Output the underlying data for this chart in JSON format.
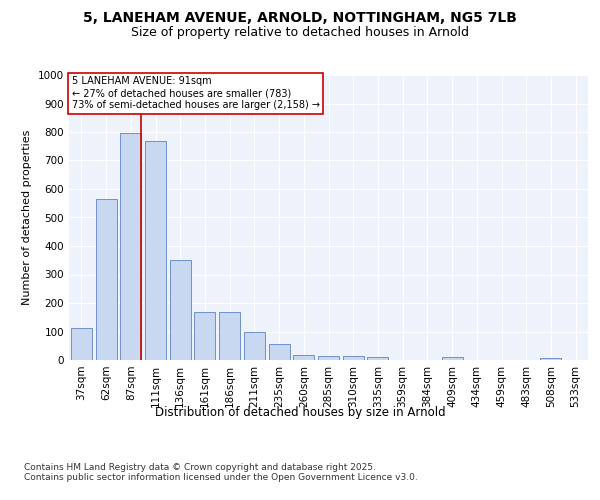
{
  "title_line1": "5, LANEHAM AVENUE, ARNOLD, NOTTINGHAM, NG5 7LB",
  "title_line2": "Size of property relative to detached houses in Arnold",
  "xlabel": "Distribution of detached houses by size in Arnold",
  "ylabel": "Number of detached properties",
  "footer": "Contains HM Land Registry data © Crown copyright and database right 2025.\nContains public sector information licensed under the Open Government Licence v3.0.",
  "annotation_text": "5 LANEHAM AVENUE: 91sqm\n← 27% of detached houses are smaller (783)\n73% of semi-detached houses are larger (2,158) →",
  "categories": [
    "37sqm",
    "62sqm",
    "87sqm",
    "111sqm",
    "136sqm",
    "161sqm",
    "186sqm",
    "211sqm",
    "235sqm",
    "260sqm",
    "285sqm",
    "310sqm",
    "335sqm",
    "359sqm",
    "384sqm",
    "409sqm",
    "434sqm",
    "459sqm",
    "483sqm",
    "508sqm",
    "533sqm"
  ],
  "values": [
    112,
    565,
    795,
    770,
    350,
    168,
    168,
    98,
    55,
    18,
    13,
    13,
    10,
    0,
    0,
    10,
    0,
    0,
    0,
    8,
    0
  ],
  "bar_color": "#c8d8f0",
  "bar_edge_color": "#7090c8",
  "red_line_color": "#cc0000",
  "red_line_x": 2.425,
  "annotation_box_edge_color": "#cc0000",
  "page_bg_color": "#ffffff",
  "plot_bg_color": "#eef2fa",
  "ylim": [
    0,
    1000
  ],
  "yticks": [
    0,
    100,
    200,
    300,
    400,
    500,
    600,
    700,
    800,
    900,
    1000
  ],
  "grid_color": "#ffffff",
  "title_fontsize": 10,
  "subtitle_fontsize": 9,
  "axis_label_fontsize": 8.5,
  "ylabel_fontsize": 8,
  "tick_fontsize": 7.5,
  "footer_fontsize": 6.5
}
